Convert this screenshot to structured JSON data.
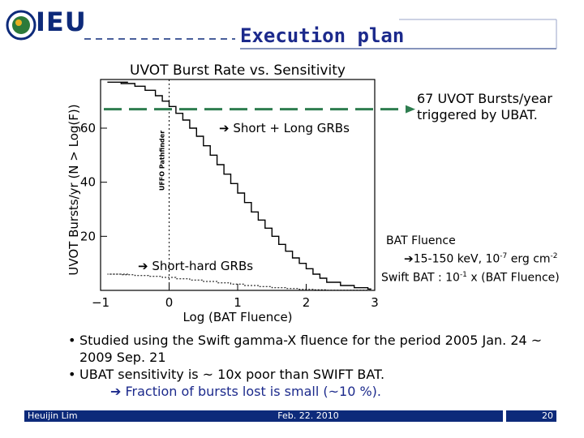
{
  "header": {
    "logo_text": "IEU",
    "title": "Execution plan"
  },
  "chart_data": {
    "type": "line",
    "title": "UVOT Burst Rate vs. Sensitivity",
    "xlabel": "Log (BAT Fluence)",
    "ylabel": "UVOT Bursts/yr (N > Log(F))",
    "xlim": [
      -1,
      3
    ],
    "ylim": [
      0,
      78
    ],
    "xticks": [
      -1,
      0,
      1,
      2,
      3
    ],
    "yticks": [
      20,
      40,
      60
    ],
    "vline": {
      "x": 0,
      "label": "UFFO Pathfinder"
    },
    "hline": {
      "y": 67
    },
    "annotations": {
      "long": "Short + Long GRBs",
      "short": "Short-hard GRBs"
    },
    "series": [
      {
        "x": [
          -0.9,
          -0.7,
          -0.5,
          -0.35,
          -0.2,
          -0.1,
          0.0,
          0.1,
          0.2,
          0.3,
          0.4,
          0.5,
          0.6,
          0.7,
          0.8,
          0.9,
          1.0,
          1.1,
          1.2,
          1.3,
          1.4,
          1.5,
          1.6,
          1.7,
          1.8,
          1.9,
          2.0,
          2.1,
          2.2,
          2.3,
          2.5,
          2.7,
          2.9
        ],
        "y": [
          77,
          76.5,
          75.5,
          74,
          72,
          70,
          68,
          65.5,
          63,
          60,
          57,
          53.5,
          50,
          46.5,
          43,
          39.5,
          36,
          32.5,
          29,
          26,
          23,
          20,
          17,
          14.5,
          12,
          10,
          8,
          6,
          4.5,
          3,
          1.8,
          1,
          0.5
        ]
      },
      {
        "x": [
          -0.9,
          -0.7,
          -0.5,
          -0.3,
          -0.1,
          0.1,
          0.3,
          0.5,
          0.7,
          0.9,
          1.1,
          1.3,
          1.5,
          1.7,
          1.9,
          2.1,
          2.3
        ],
        "y": [
          6,
          5.8,
          5.5,
          5.2,
          4.8,
          4.3,
          3.8,
          3.3,
          2.8,
          2.3,
          1.8,
          1.4,
          1,
          0.7,
          0.4,
          0.2,
          0.1
        ]
      }
    ]
  },
  "callouts": {
    "uvot": "67 UVOT Bursts/year triggered by UBAT.",
    "fluence_title": "BAT Fluence",
    "fluence_range": "15-150 keV, 10",
    "fluence_exp": "-7",
    "fluence_unit": " erg cm",
    "fluence_unit_exp": "-2",
    "swift_prefix": "Swift BAT : 10",
    "swift_exp": "-1",
    "swift_suffix": " x (BAT Fluence)"
  },
  "bullets": [
    "Studied using the Swift gamma-X fluence for the period 2005 Jan. 24 ~ 2009 Sep. 21",
    "UBAT sensitivity is ~ 10x poor than SWIFT BAT."
  ],
  "conclusion": "Fraction of bursts lost is small (~10 %).",
  "footer": {
    "author": "Heuijin Lim",
    "date": "Feb. 22. 2010",
    "page": "20"
  },
  "colors": {
    "navy": "#0d2a7a",
    "title": "#1c2a8c",
    "hline": "#2e7d4f",
    "logo_globe": "#2c7a3a"
  }
}
